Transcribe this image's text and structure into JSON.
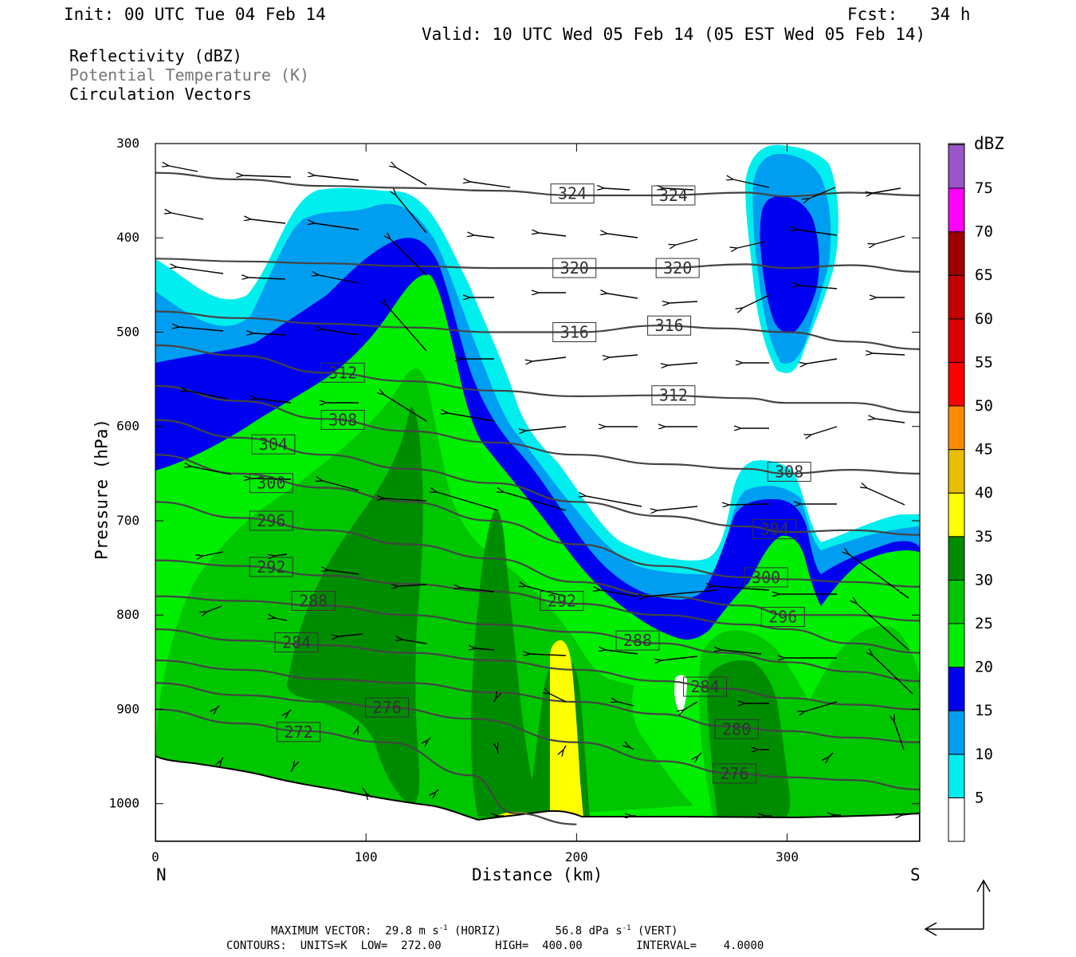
{
  "header": {
    "init": "Init: 00 UTC Tue 04 Feb 14",
    "fcst_label": "Fcst:",
    "fcst_value": "34 h",
    "valid": "Valid: 10 UTC Wed 05 Feb 14 (05 EST Wed 05 Feb 14)"
  },
  "fields": {
    "reflectivity": "Reflectivity (dBZ)",
    "theta": "Potential Temperature (K)",
    "vectors": "Circulation Vectors"
  },
  "footer": {
    "max_vector": "MAXIMUM VECTOR:  29.8 m s",
    "max_horiz": " (HORIZ)",
    "max_vert_val": "56.8 dPa s",
    "max_vert": " (VERT)",
    "exp": "-1",
    "contours": "CONTOURS:  UNITS=K  LOW=  272.00        HIGH=  400.00        INTERVAL=    4.0000"
  },
  "colors": {
    "dbz_5": "#00eeee",
    "dbz_10": "#009ef0",
    "dbz_15": "#0000f0",
    "dbz_20": "#00ee00",
    "dbz_25": "#00c600",
    "dbz_30": "#008c00",
    "dbz_35": "#ffff00",
    "dbz_40": "#e8be00",
    "dbz_45": "#ff8c00",
    "dbz_50": "#ff0000",
    "dbz_55": "#dc0000",
    "dbz_60": "#c40000",
    "dbz_65": "#a00000",
    "dbz_70": "#ff00ff",
    "dbz_75": "#9a55c8",
    "contour": "#444444"
  },
  "chart_data": {
    "type": "heatmap",
    "title": "Reflectivity (dBZ) / Potential Temperature (K) / Circulation Vectors",
    "xlabel": "Distance (km)",
    "ylabel": "Pressure (hPa)",
    "xlim": [
      0,
      363
    ],
    "ylim": [
      1040,
      300
    ],
    "x_ticks": [
      0,
      100,
      200,
      300
    ],
    "y_ticks": [
      300,
      400,
      500,
      600,
      700,
      800,
      900,
      1000
    ],
    "x_end_labels": {
      "left": "N",
      "right": "S"
    },
    "colorbar": {
      "title": "dBZ",
      "levels": [
        5,
        10,
        15,
        20,
        25,
        30,
        35,
        40,
        45,
        50,
        55,
        60,
        65,
        70,
        75
      ]
    },
    "theta_contour_labels": [
      {
        "K": "324",
        "x": 198,
        "p": 353
      },
      {
        "K": "324",
        "x": 246,
        "p": 355
      },
      {
        "K": "320",
        "x": 199,
        "p": 432
      },
      {
        "K": "320",
        "x": 248,
        "p": 432
      },
      {
        "K": "316",
        "x": 199,
        "p": 500
      },
      {
        "K": "316",
        "x": 244,
        "p": 493
      },
      {
        "K": "312",
        "x": 89,
        "p": 543
      },
      {
        "K": "312",
        "x": 246,
        "p": 567
      },
      {
        "K": "308",
        "x": 89,
        "p": 593
      },
      {
        "K": "308",
        "x": 301,
        "p": 648
      },
      {
        "K": "304",
        "x": 56,
        "p": 619
      },
      {
        "K": "304",
        "x": 294,
        "p": 709
      },
      {
        "K": "300",
        "x": 55,
        "p": 660
      },
      {
        "K": "300",
        "x": 290,
        "p": 760
      },
      {
        "K": "296",
        "x": 55,
        "p": 700
      },
      {
        "K": "296",
        "x": 298,
        "p": 802
      },
      {
        "K": "292",
        "x": 55,
        "p": 749
      },
      {
        "K": "292",
        "x": 193,
        "p": 785
      },
      {
        "K": "288",
        "x": 75,
        "p": 785
      },
      {
        "K": "288",
        "x": 229,
        "p": 827
      },
      {
        "K": "284",
        "x": 67,
        "p": 829
      },
      {
        "K": "284",
        "x": 261,
        "p": 876
      },
      {
        "K": "280",
        "x": 276,
        "p": 921
      },
      {
        "K": "276",
        "x": 110,
        "p": 898
      },
      {
        "K": "276",
        "x": 275,
        "p": 968
      },
      {
        "K": "272",
        "x": 68,
        "p": 924
      }
    ],
    "max_vector": {
      "horizontal_m_s": 29.8,
      "vertical_dPa_s": 56.8
    },
    "contour_info": {
      "units": "K",
      "low": 272.0,
      "high": 400.0,
      "interval": 4.0
    }
  }
}
